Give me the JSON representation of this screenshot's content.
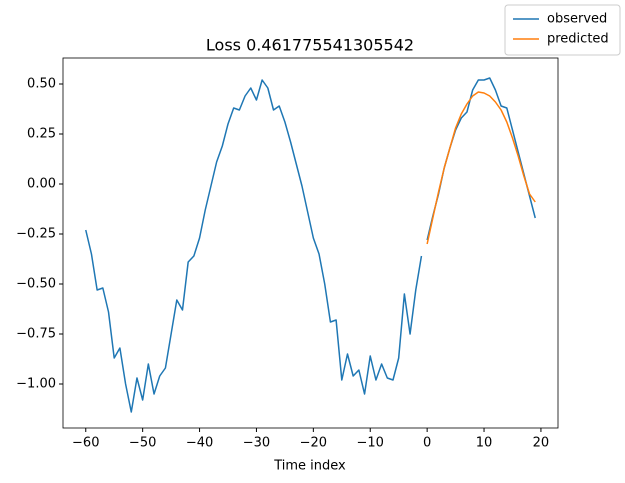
{
  "chart_data": {
    "type": "line",
    "title": "Loss 0.461775541305542",
    "x_label": "Time index",
    "xlim": [
      -64,
      23
    ],
    "ylim": [
      -1.22,
      0.63
    ],
    "xticks": [
      {
        "value": -60,
        "label": "−60"
      },
      {
        "value": -50,
        "label": "−50"
      },
      {
        "value": -40,
        "label": "−40"
      },
      {
        "value": -30,
        "label": "−30"
      },
      {
        "value": -20,
        "label": "−20"
      },
      {
        "value": -10,
        "label": "−10"
      },
      0,
      10,
      20
    ],
    "yticks": [
      {
        "value": -1,
        "label": "−1.00"
      },
      {
        "value": -0.75,
        "label": "−0.75"
      },
      {
        "value": -0.5,
        "label": "−0.50"
      },
      {
        "value": -0.25,
        "label": "−0.25"
      },
      {
        "value": 0,
        "label": "0.00"
      },
      {
        "value": 0.25,
        "label": "0.25"
      },
      {
        "value": 0.5,
        "label": "0.50"
      }
    ],
    "legend": "upper right",
    "series": [
      {
        "name": "observed",
        "color": "#1f77b4",
        "x": [
          -60,
          -59,
          -58,
          -57,
          -56,
          -55,
          -54,
          -53,
          -52,
          -51,
          -50,
          -49,
          -48,
          -47,
          -46,
          -45,
          -44,
          -43,
          -42,
          -41,
          -40,
          -39,
          -38,
          -37,
          -36,
          -35,
          -34,
          -33,
          -32,
          -31,
          -30,
          -29,
          -28,
          -27,
          -26,
          -25,
          -24,
          -23,
          -22,
          -21,
          -20,
          -19,
          -18,
          -17,
          -16,
          -15,
          -14,
          -13,
          -12,
          -11,
          -10,
          -9,
          -8,
          -7,
          -6,
          -5,
          -4,
          -3,
          -2,
          -1
        ],
        "values": [
          -0.23,
          -0.35,
          -0.53,
          -0.52,
          -0.64,
          -0.87,
          -0.82,
          -1.0,
          -1.14,
          -0.97,
          -1.08,
          -0.9,
          -1.05,
          -0.96,
          -0.92,
          -0.75,
          -0.58,
          -0.63,
          -0.39,
          -0.36,
          -0.27,
          -0.13,
          -0.01,
          0.11,
          0.19,
          0.3,
          0.38,
          0.37,
          0.44,
          0.48,
          0.42,
          0.52,
          0.48,
          0.37,
          0.39,
          0.31,
          0.21,
          0.1,
          -0.01,
          -0.14,
          -0.27,
          -0.35,
          -0.5,
          -0.69,
          -0.68,
          -0.98,
          -0.85,
          -0.96,
          -0.93,
          -1.05,
          -0.86,
          -0.98,
          -0.9,
          -0.97,
          -0.98,
          -0.87,
          -0.55,
          -0.75,
          -0.53,
          -0.36
        ]
      },
      {
        "color": "#1f77b4",
        "x": [
          0,
          1,
          2,
          3,
          4,
          5,
          6,
          7,
          8,
          9,
          10,
          11,
          12,
          13,
          14,
          15,
          16,
          17,
          18,
          19
        ],
        "values": [
          -0.28,
          -0.16,
          -0.05,
          0.08,
          0.18,
          0.27,
          0.33,
          0.36,
          0.47,
          0.52,
          0.52,
          0.53,
          0.47,
          0.39,
          0.38,
          0.27,
          0.16,
          0.05,
          -0.06,
          -0.17
        ]
      },
      {
        "name": "predicted",
        "color": "#ff7f0e",
        "x": [
          0,
          1,
          2,
          3,
          4,
          5,
          6,
          7,
          8,
          9,
          10,
          11,
          12,
          13,
          14,
          15,
          16,
          17,
          18,
          19
        ],
        "values": [
          -0.3,
          -0.17,
          -0.04,
          0.08,
          0.18,
          0.28,
          0.35,
          0.4,
          0.44,
          0.46,
          0.455,
          0.44,
          0.41,
          0.37,
          0.31,
          0.23,
          0.14,
          0.04,
          -0.05,
          -0.09
        ]
      }
    ]
  }
}
